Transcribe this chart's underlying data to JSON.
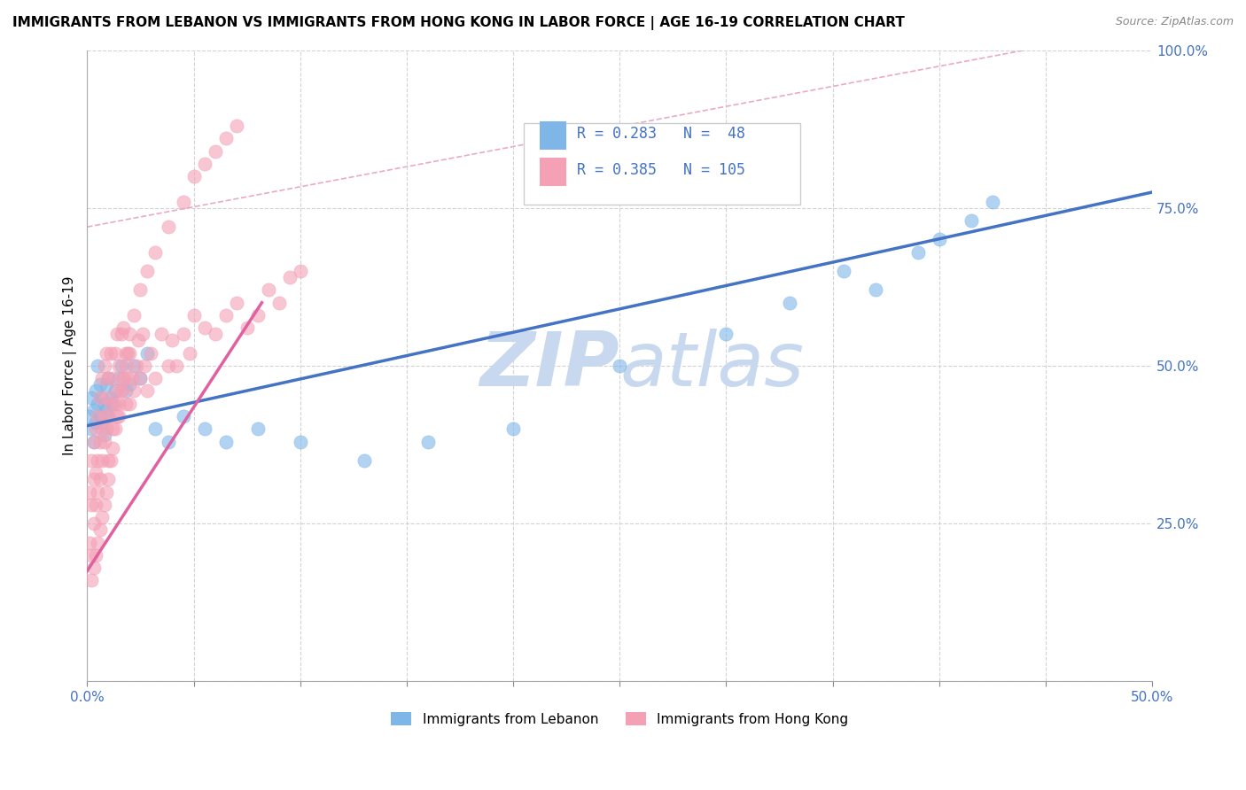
{
  "title": "IMMIGRANTS FROM LEBANON VS IMMIGRANTS FROM HONG KONG IN LABOR FORCE | AGE 16-19 CORRELATION CHART",
  "source": "Source: ZipAtlas.com",
  "ylabel": "In Labor Force | Age 16-19",
  "xlim": [
    0.0,
    0.5
  ],
  "ylim": [
    0.0,
    1.0
  ],
  "legend_r1": "R = 0.283",
  "legend_n1": "N =  48",
  "legend_r2": "R = 0.385",
  "legend_n2": "N = 105",
  "color_lebanon": "#7EB6E8",
  "color_hongkong": "#F4A0B5",
  "color_trend_lebanon": "#4472C4",
  "color_trend_hongkong": "#E060A0",
  "color_ref_line": "#E8A0C0",
  "watermark_color": "#C8D8EF",
  "background_color": "#FFFFFF",
  "grid_color": "#C8C8C8",
  "lebanon_x": [
    0.001,
    0.002,
    0.002,
    0.003,
    0.003,
    0.004,
    0.004,
    0.005,
    0.005,
    0.006,
    0.006,
    0.007,
    0.007,
    0.008,
    0.008,
    0.009,
    0.009,
    0.01,
    0.01,
    0.011,
    0.012,
    0.013,
    0.015,
    0.016,
    0.018,
    0.02,
    0.022,
    0.025,
    0.028,
    0.032,
    0.038,
    0.045,
    0.055,
    0.065,
    0.08,
    0.1,
    0.13,
    0.16,
    0.2,
    0.25,
    0.3,
    0.33,
    0.355,
    0.37,
    0.39,
    0.4,
    0.415,
    0.425
  ],
  "lebanon_y": [
    0.42,
    0.45,
    0.4,
    0.43,
    0.38,
    0.46,
    0.41,
    0.5,
    0.44,
    0.42,
    0.47,
    0.45,
    0.41,
    0.44,
    0.39,
    0.47,
    0.43,
    0.48,
    0.42,
    0.45,
    0.44,
    0.46,
    0.48,
    0.5,
    0.46,
    0.47,
    0.5,
    0.48,
    0.52,
    0.4,
    0.38,
    0.42,
    0.4,
    0.38,
    0.4,
    0.38,
    0.35,
    0.38,
    0.4,
    0.5,
    0.55,
    0.6,
    0.65,
    0.62,
    0.68,
    0.7,
    0.73,
    0.76
  ],
  "hongkong_x": [
    0.001,
    0.001,
    0.002,
    0.002,
    0.002,
    0.003,
    0.003,
    0.003,
    0.004,
    0.004,
    0.004,
    0.005,
    0.005,
    0.005,
    0.006,
    0.006,
    0.006,
    0.007,
    0.007,
    0.007,
    0.008,
    0.008,
    0.008,
    0.009,
    0.009,
    0.009,
    0.01,
    0.01,
    0.01,
    0.011,
    0.011,
    0.012,
    0.012,
    0.013,
    0.013,
    0.014,
    0.014,
    0.015,
    0.015,
    0.016,
    0.016,
    0.017,
    0.017,
    0.018,
    0.018,
    0.019,
    0.02,
    0.02,
    0.021,
    0.022,
    0.023,
    0.024,
    0.025,
    0.026,
    0.027,
    0.028,
    0.03,
    0.032,
    0.035,
    0.038,
    0.04,
    0.042,
    0.045,
    0.048,
    0.05,
    0.055,
    0.06,
    0.065,
    0.07,
    0.075,
    0.08,
    0.085,
    0.09,
    0.095,
    0.1,
    0.002,
    0.003,
    0.004,
    0.005,
    0.006,
    0.007,
    0.008,
    0.009,
    0.01,
    0.011,
    0.012,
    0.013,
    0.014,
    0.015,
    0.016,
    0.017,
    0.018,
    0.019,
    0.02,
    0.022,
    0.025,
    0.028,
    0.032,
    0.038,
    0.045,
    0.05,
    0.055,
    0.06,
    0.065,
    0.07
  ],
  "hongkong_y": [
    0.3,
    0.22,
    0.28,
    0.35,
    0.2,
    0.32,
    0.38,
    0.25,
    0.33,
    0.4,
    0.28,
    0.35,
    0.42,
    0.3,
    0.38,
    0.45,
    0.32,
    0.4,
    0.48,
    0.35,
    0.42,
    0.5,
    0.38,
    0.45,
    0.52,
    0.4,
    0.42,
    0.48,
    0.35,
    0.44,
    0.52,
    0.4,
    0.48,
    0.44,
    0.52,
    0.46,
    0.55,
    0.42,
    0.5,
    0.46,
    0.55,
    0.48,
    0.56,
    0.44,
    0.52,
    0.48,
    0.44,
    0.52,
    0.48,
    0.46,
    0.5,
    0.54,
    0.48,
    0.55,
    0.5,
    0.46,
    0.52,
    0.48,
    0.55,
    0.5,
    0.54,
    0.5,
    0.55,
    0.52,
    0.58,
    0.56,
    0.55,
    0.58,
    0.6,
    0.56,
    0.58,
    0.62,
    0.6,
    0.64,
    0.65,
    0.16,
    0.18,
    0.2,
    0.22,
    0.24,
    0.26,
    0.28,
    0.3,
    0.32,
    0.35,
    0.37,
    0.4,
    0.42,
    0.44,
    0.46,
    0.48,
    0.5,
    0.52,
    0.55,
    0.58,
    0.62,
    0.65,
    0.68,
    0.72,
    0.76,
    0.8,
    0.82,
    0.84,
    0.86,
    0.88
  ],
  "trend_lebanon_x0": 0.0,
  "trend_lebanon_x1": 0.5,
  "trend_lebanon_y0": 0.405,
  "trend_lebanon_y1": 0.775,
  "trend_hongkong_x0": 0.0,
  "trend_hongkong_x1": 0.082,
  "trend_hongkong_y0": 0.175,
  "trend_hongkong_y1": 0.6,
  "ref_line_x0": 0.0,
  "ref_line_y0": 0.72,
  "ref_line_x1": 0.44,
  "ref_line_y1": 1.0
}
